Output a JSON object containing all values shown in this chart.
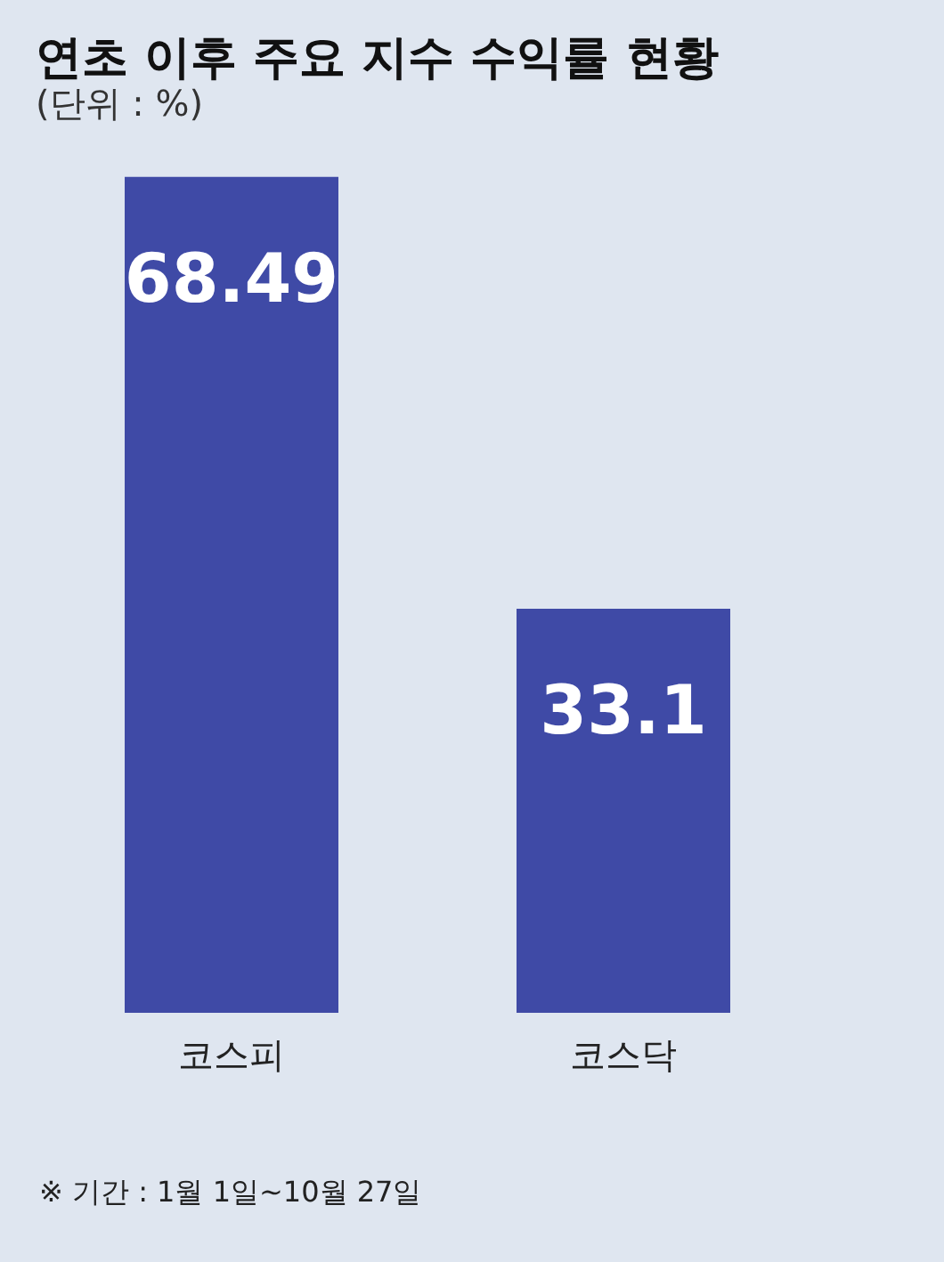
{
  "chart_data": {
    "type": "bar",
    "title": "연초 이후 주요 지수 수익률 현황",
    "subtitle": "(단위 : %)",
    "categories": [
      "코스피",
      "코스닥"
    ],
    "values": [
      68.49,
      33.1
    ],
    "color": "#3f4aa6",
    "data_labels": true,
    "annotations": [
      "※ 기간 : 1월 1일~10월 27일"
    ]
  }
}
